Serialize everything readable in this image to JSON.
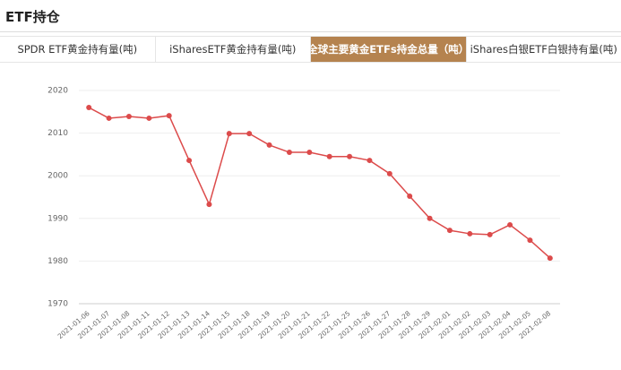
{
  "header": {
    "title": "ETF持仓"
  },
  "tabs": [
    "SPDR ETF黄金持有量(吨)",
    "iSharesETF黄金持有量(吨)",
    "全球主要黄金ETFs持金总量（吨）",
    "iShares白银ETF白银持有量(吨)"
  ],
  "chart_data": {
    "type": "line",
    "x": [
      "2021-01-06",
      "2021-01-07",
      "2021-01-08",
      "2021-01-11",
      "2021-01-12",
      "2021-01-13",
      "2021-01-14",
      "2021-01-15",
      "2021-01-18",
      "2021-01-19",
      "2021-01-20",
      "2021-01-21",
      "2021-01-22",
      "2021-01-25",
      "2021-01-26",
      "2021-01-27",
      "2021-01-28",
      "2021-01-29",
      "2021-02-01",
      "2021-02-02",
      "2021-02-03",
      "2021-02-04",
      "2021-02-05",
      "2021-02-08"
    ],
    "series": [
      {
        "color": "#dc4b4b",
        "values": [
          2016.0,
          2013.5,
          2013.9,
          2013.5,
          2014.1,
          2003.6,
          1993.3,
          2009.9,
          2009.9,
          2007.2,
          2005.5,
          2005.5,
          2004.5,
          2004.5,
          2003.6,
          2000.5,
          1995.2,
          1990.0,
          1987.2,
          1986.4,
          1986.2,
          1988.5,
          1984.9,
          1980.7
        ]
      }
    ],
    "ylim": [
      1970,
      2020
    ],
    "yticks": [
      1970,
      1980,
      1990,
      2000,
      2010,
      2020
    ],
    "grid": true
  }
}
